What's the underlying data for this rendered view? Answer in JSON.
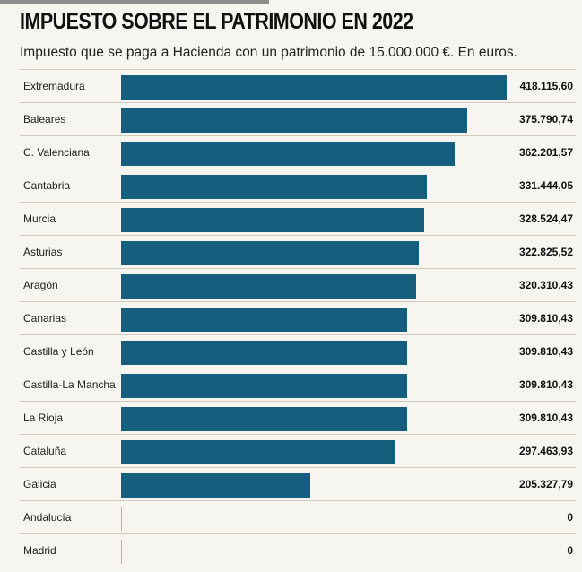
{
  "header": {
    "title": "IMPUESTO SOBRE EL PATRIMONIO EN 2022",
    "subtitle": "Impuesto que se paga a Hacienda con un patrimonio de 15.000.000 €. En euros."
  },
  "colors": {
    "bar": "#155e7d",
    "background": "#f7f5ef"
  },
  "chart_data": {
    "type": "bar",
    "orientation": "horizontal",
    "title": "IMPUESTO SOBRE EL PATRIMONIO EN 2022",
    "subtitle": "Impuesto que se paga a Hacienda con un patrimonio de 15.000.000 €. En euros.",
    "categories": [
      "Extremadura",
      "Baleares",
      "C. Valenciana",
      "Cantabria",
      "Murcia",
      "Asturias",
      "Aragón",
      "Canarias",
      "Castilla y León",
      "Castilla-La Mancha",
      "La Rioja",
      "Cataluña",
      "Galicia",
      "Andalucía",
      "Madrid"
    ],
    "values": [
      418115.6,
      375790.74,
      362201.57,
      331444.05,
      328524.47,
      322825.52,
      320310.43,
      309810.43,
      309810.43,
      309810.43,
      309810.43,
      297463.93,
      205327.79,
      0,
      0
    ],
    "value_labels": [
      "418.115,60",
      "375.790,74",
      "362.201,57",
      "331.444,05",
      "328.524,47",
      "322.825,52",
      "320.310,43",
      "309.810,43",
      "309.810,43",
      "309.810,43",
      "309.810,43",
      "297.463,93",
      "205.327,79",
      "0",
      "0"
    ],
    "xlim": [
      0,
      418115.6
    ],
    "grid": false,
    "legend": "none"
  }
}
